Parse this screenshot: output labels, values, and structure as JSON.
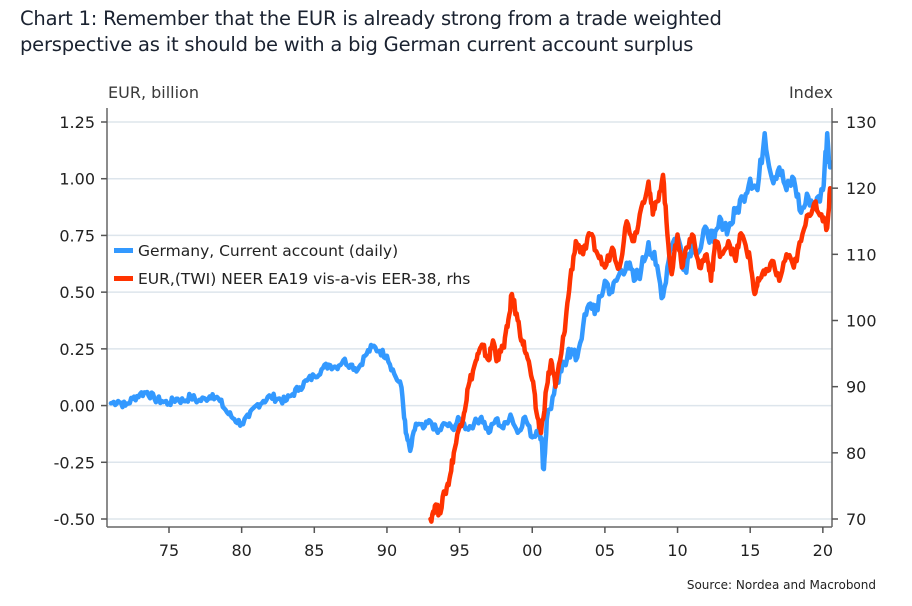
{
  "title_lines": [
    "Chart 1: Remember that the EUR is already strong from a trade weighted",
    "perspective as it should be with a big German current account surplus"
  ],
  "source": "Source: Nordea and Macrobond",
  "colors": {
    "blue": "#3399ff",
    "red": "#ff3300",
    "grid": "#dde5ec",
    "axis": "#666666"
  },
  "chart_data": {
    "type": "line",
    "title": "Chart 1: Remember that the EUR is already strong from a trade weighted perspective as it should be with a big German current account surplus",
    "xlabel": "",
    "ylabel": "EUR, billion",
    "y2label": "Index",
    "xlim": [
      1971,
      2020.6
    ],
    "ylim": [
      -0.5,
      1.25
    ],
    "y2lim": [
      70,
      130
    ],
    "x_ticks": [
      1975,
      1980,
      1985,
      1990,
      1995,
      2000,
      2005,
      2010,
      2015,
      2020
    ],
    "x_tick_labels": [
      "75",
      "80",
      "85",
      "90",
      "95",
      "00",
      "05",
      "10",
      "15",
      "20"
    ],
    "y_ticks": [
      1.25,
      1.0,
      0.75,
      0.5,
      0.25,
      0.0,
      -0.25,
      -0.5
    ],
    "y_tick_labels": [
      "1.25",
      "1.00",
      "0.75",
      "0.50",
      "0.25",
      "0.00",
      "-0.25",
      "-0.50"
    ],
    "y2_ticks": [
      130,
      120,
      110,
      100,
      90,
      80,
      70
    ],
    "y2_tick_labels": [
      "130",
      "120",
      "110",
      "100",
      "90",
      "80",
      "70"
    ],
    "grid": true,
    "legend_position": "upper-left",
    "series": [
      {
        "name": "Germany, Current account (daily)",
        "axis": "left",
        "color": "#3399ff",
        "x": [
          1971.0,
          1971.5,
          1972.0,
          1972.5,
          1973.0,
          1973.5,
          1974.0,
          1974.5,
          1975.0,
          1975.5,
          1976.0,
          1976.5,
          1977.0,
          1977.5,
          1978.0,
          1978.5,
          1979.0,
          1979.5,
          1980.0,
          1980.5,
          1981.0,
          1981.5,
          1982.0,
          1982.5,
          1983.0,
          1983.5,
          1984.0,
          1984.5,
          1985.0,
          1985.5,
          1986.0,
          1986.5,
          1987.0,
          1987.5,
          1988.0,
          1988.5,
          1989.0,
          1989.5,
          1990.0,
          1990.5,
          1991.0,
          1991.3,
          1991.6,
          1992.0,
          1992.5,
          1993.0,
          1993.5,
          1994.0,
          1994.5,
          1995.0,
          1995.5,
          1996.0,
          1996.5,
          1997.0,
          1997.5,
          1998.0,
          1998.5,
          1999.0,
          1999.5,
          2000.0,
          2000.5,
          2000.8,
          2001.0,
          2001.5,
          2002.0,
          2002.5,
          2003.0,
          2003.5,
          2004.0,
          2004.5,
          2005.0,
          2005.5,
          2006.0,
          2006.5,
          2007.0,
          2007.5,
          2008.0,
          2008.5,
          2009.0,
          2009.5,
          2010.0,
          2010.5,
          2011.0,
          2011.5,
          2012.0,
          2012.5,
          2013.0,
          2013.5,
          2014.0,
          2014.5,
          2015.0,
          2015.5,
          2016.0,
          2016.5,
          2017.0,
          2017.5,
          2018.0,
          2018.5,
          2019.0,
          2019.5,
          2020.0,
          2020.3,
          2020.5
        ],
        "values": [
          0.01,
          0.02,
          0.0,
          0.03,
          0.05,
          0.06,
          0.03,
          0.02,
          0.01,
          0.03,
          0.02,
          0.04,
          0.02,
          0.03,
          0.05,
          0.02,
          -0.03,
          -0.06,
          -0.08,
          -0.05,
          0.0,
          0.02,
          0.04,
          0.03,
          0.02,
          0.05,
          0.08,
          0.11,
          0.13,
          0.16,
          0.18,
          0.17,
          0.2,
          0.18,
          0.16,
          0.22,
          0.26,
          0.24,
          0.22,
          0.14,
          0.08,
          -0.12,
          -0.2,
          -0.08,
          -0.1,
          -0.07,
          -0.12,
          -0.08,
          -0.1,
          -0.06,
          -0.1,
          -0.08,
          -0.05,
          -0.12,
          -0.06,
          -0.1,
          -0.04,
          -0.12,
          -0.05,
          -0.14,
          -0.08,
          -0.28,
          -0.06,
          0.05,
          0.15,
          0.25,
          0.2,
          0.35,
          0.45,
          0.42,
          0.55,
          0.5,
          0.58,
          0.63,
          0.55,
          0.6,
          0.72,
          0.62,
          0.48,
          0.7,
          0.75,
          0.6,
          0.72,
          0.68,
          0.78,
          0.72,
          0.82,
          0.78,
          0.85,
          0.92,
          1.0,
          0.95,
          1.2,
          1.0,
          1.05,
          0.95,
          1.0,
          0.85,
          0.92,
          0.88,
          0.95,
          1.2,
          1.05
        ]
      },
      {
        "name": "EUR,(TWI) NEER EA19 vis-a-vis EER-38, rhs",
        "axis": "right",
        "color": "#ff3300",
        "x": [
          1993.0,
          1993.3,
          1993.6,
          1994.0,
          1994.3,
          1994.6,
          1995.0,
          1995.3,
          1995.6,
          1996.0,
          1996.3,
          1996.6,
          1997.0,
          1997.3,
          1997.6,
          1998.0,
          1998.3,
          1998.6,
          1999.0,
          1999.3,
          1999.6,
          2000.0,
          2000.3,
          2000.6,
          2001.0,
          2001.3,
          2001.6,
          2002.0,
          2002.3,
          2002.6,
          2003.0,
          2003.5,
          2004.0,
          2004.5,
          2005.0,
          2005.5,
          2006.0,
          2006.5,
          2007.0,
          2007.5,
          2008.0,
          2008.3,
          2008.6,
          2009.0,
          2009.3,
          2009.6,
          2010.0,
          2010.3,
          2010.6,
          2011.0,
          2011.5,
          2012.0,
          2012.3,
          2012.6,
          2013.0,
          2013.5,
          2014.0,
          2014.3,
          2014.6,
          2015.0,
          2015.3,
          2015.6,
          2016.0,
          2016.5,
          2017.0,
          2017.5,
          2018.0,
          2018.5,
          2019.0,
          2019.5,
          2020.0,
          2020.3,
          2020.5
        ],
        "values": [
          70,
          72,
          71,
          74,
          76,
          80,
          84,
          86,
          90,
          93,
          95,
          96,
          94,
          97,
          94,
          96,
          99,
          104,
          100,
          97,
          95,
          91,
          86,
          83,
          90,
          94,
          90,
          95,
          100,
          106,
          112,
          110,
          113,
          110,
          108,
          111,
          108,
          115,
          112,
          117,
          121,
          116,
          118,
          122,
          113,
          107,
          113,
          108,
          111,
          113,
          108,
          110,
          106,
          112,
          110,
          112,
          109,
          113,
          112,
          109,
          104,
          106,
          107,
          109,
          106,
          110,
          108,
          112,
          116,
          118,
          115,
          114,
          120
        ]
      }
    ]
  }
}
